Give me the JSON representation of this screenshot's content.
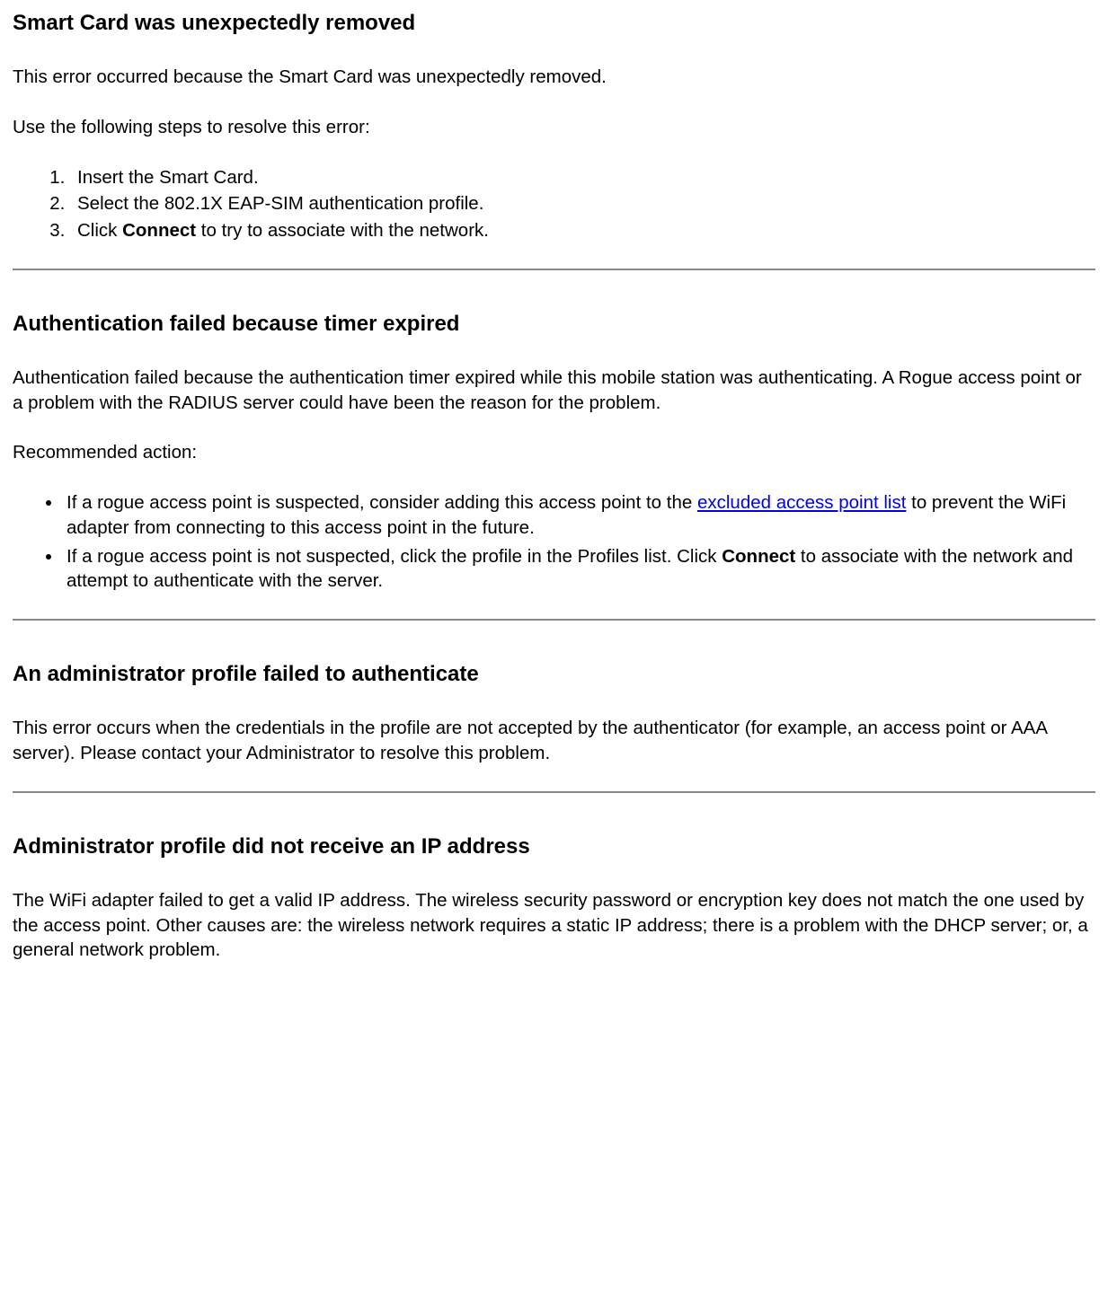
{
  "section1": {
    "heading": "Smart Card was unexpectedly removed",
    "p1": "This error occurred because the Smart Card was unexpectedly removed.",
    "p2": "Use the following steps to resolve this error:",
    "step1": "Insert the Smart Card.",
    "step2": "Select the 802.1X EAP-SIM authentication profile.",
    "step3_a": "Click ",
    "step3_b": "Connect",
    "step3_c": " to try to associate with the network."
  },
  "section2": {
    "heading": "Authentication failed because timer expired",
    "p1": "Authentication failed because the authentication timer expired while this mobile station was authenticating. A Rogue access point or a problem with the RADIUS server could have been the reason for the problem.",
    "p2": "Recommended action:",
    "b1_a": "If a rogue access point is suspected, consider adding this access point to the ",
    "b1_link": "excluded access point list",
    "b1_b": " to prevent the WiFi adapter from connecting to this access point in the future.",
    "b2_a": "If a rogue access point is not suspected, click the profile in the Profiles list. Click ",
    "b2_bold": "Connect",
    "b2_b": " to associate with the network and attempt to authenticate with the server."
  },
  "section3": {
    "heading": "An administrator profile failed to authenticate",
    "p1": "This error occurs when the credentials in the profile are not accepted by the authenticator (for example, an access point or AAA server). Please contact your Administrator to resolve this problem."
  },
  "section4": {
    "heading": "Administrator profile did not receive an IP address",
    "p1": "The WiFi adapter failed to get a valid IP address. The wireless security password or encryption key does not match the one used by the access point. Other causes are: the wireless network requires a static IP address; there is a problem with the DHCP server; or, a general network problem."
  }
}
